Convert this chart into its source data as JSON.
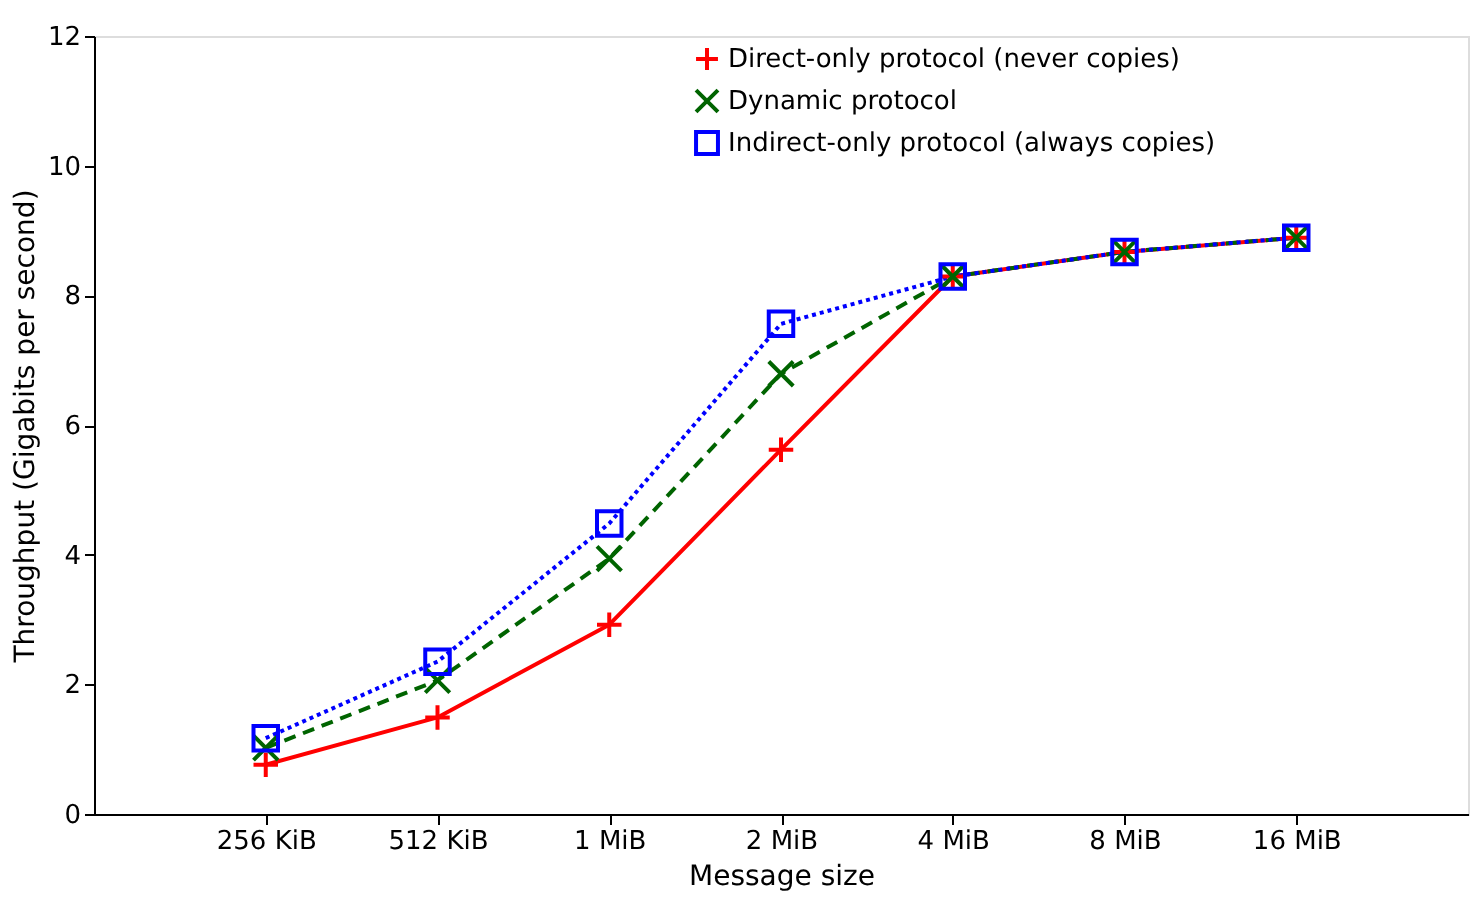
{
  "chart_data": {
    "type": "line",
    "xlabel": "Message size",
    "ylabel": "Throughput (Gigabits per second)",
    "categories": [
      "256 KiB",
      "512 KiB",
      "1 MiB",
      "2 MiB",
      "4 MiB",
      "8 MiB",
      "16 MiB"
    ],
    "series": [
      {
        "name": "Direct-only protocol (never copies)",
        "color": "#ff0000",
        "marker": "cross",
        "line_style": "solid",
        "values": [
          0.76,
          1.49,
          2.92,
          5.62,
          8.29,
          8.67,
          8.89
        ]
      },
      {
        "name": "Dynamic protocol",
        "color": "#006400",
        "marker": "x",
        "line_style": "dashed",
        "values": [
          1.02,
          2.06,
          3.94,
          6.79,
          8.29,
          8.67,
          8.89
        ]
      },
      {
        "name": "Indirect-only protocol (always copies)",
        "color": "#0000ff",
        "marker": "square",
        "line_style": "dotted",
        "values": [
          1.17,
          2.35,
          4.48,
          7.56,
          8.29,
          8.67,
          8.89
        ]
      }
    ],
    "ylim": [
      0,
      12
    ],
    "yticks": [
      0,
      2,
      4,
      6,
      8,
      10,
      12
    ],
    "grid": false,
    "legend": "top"
  }
}
